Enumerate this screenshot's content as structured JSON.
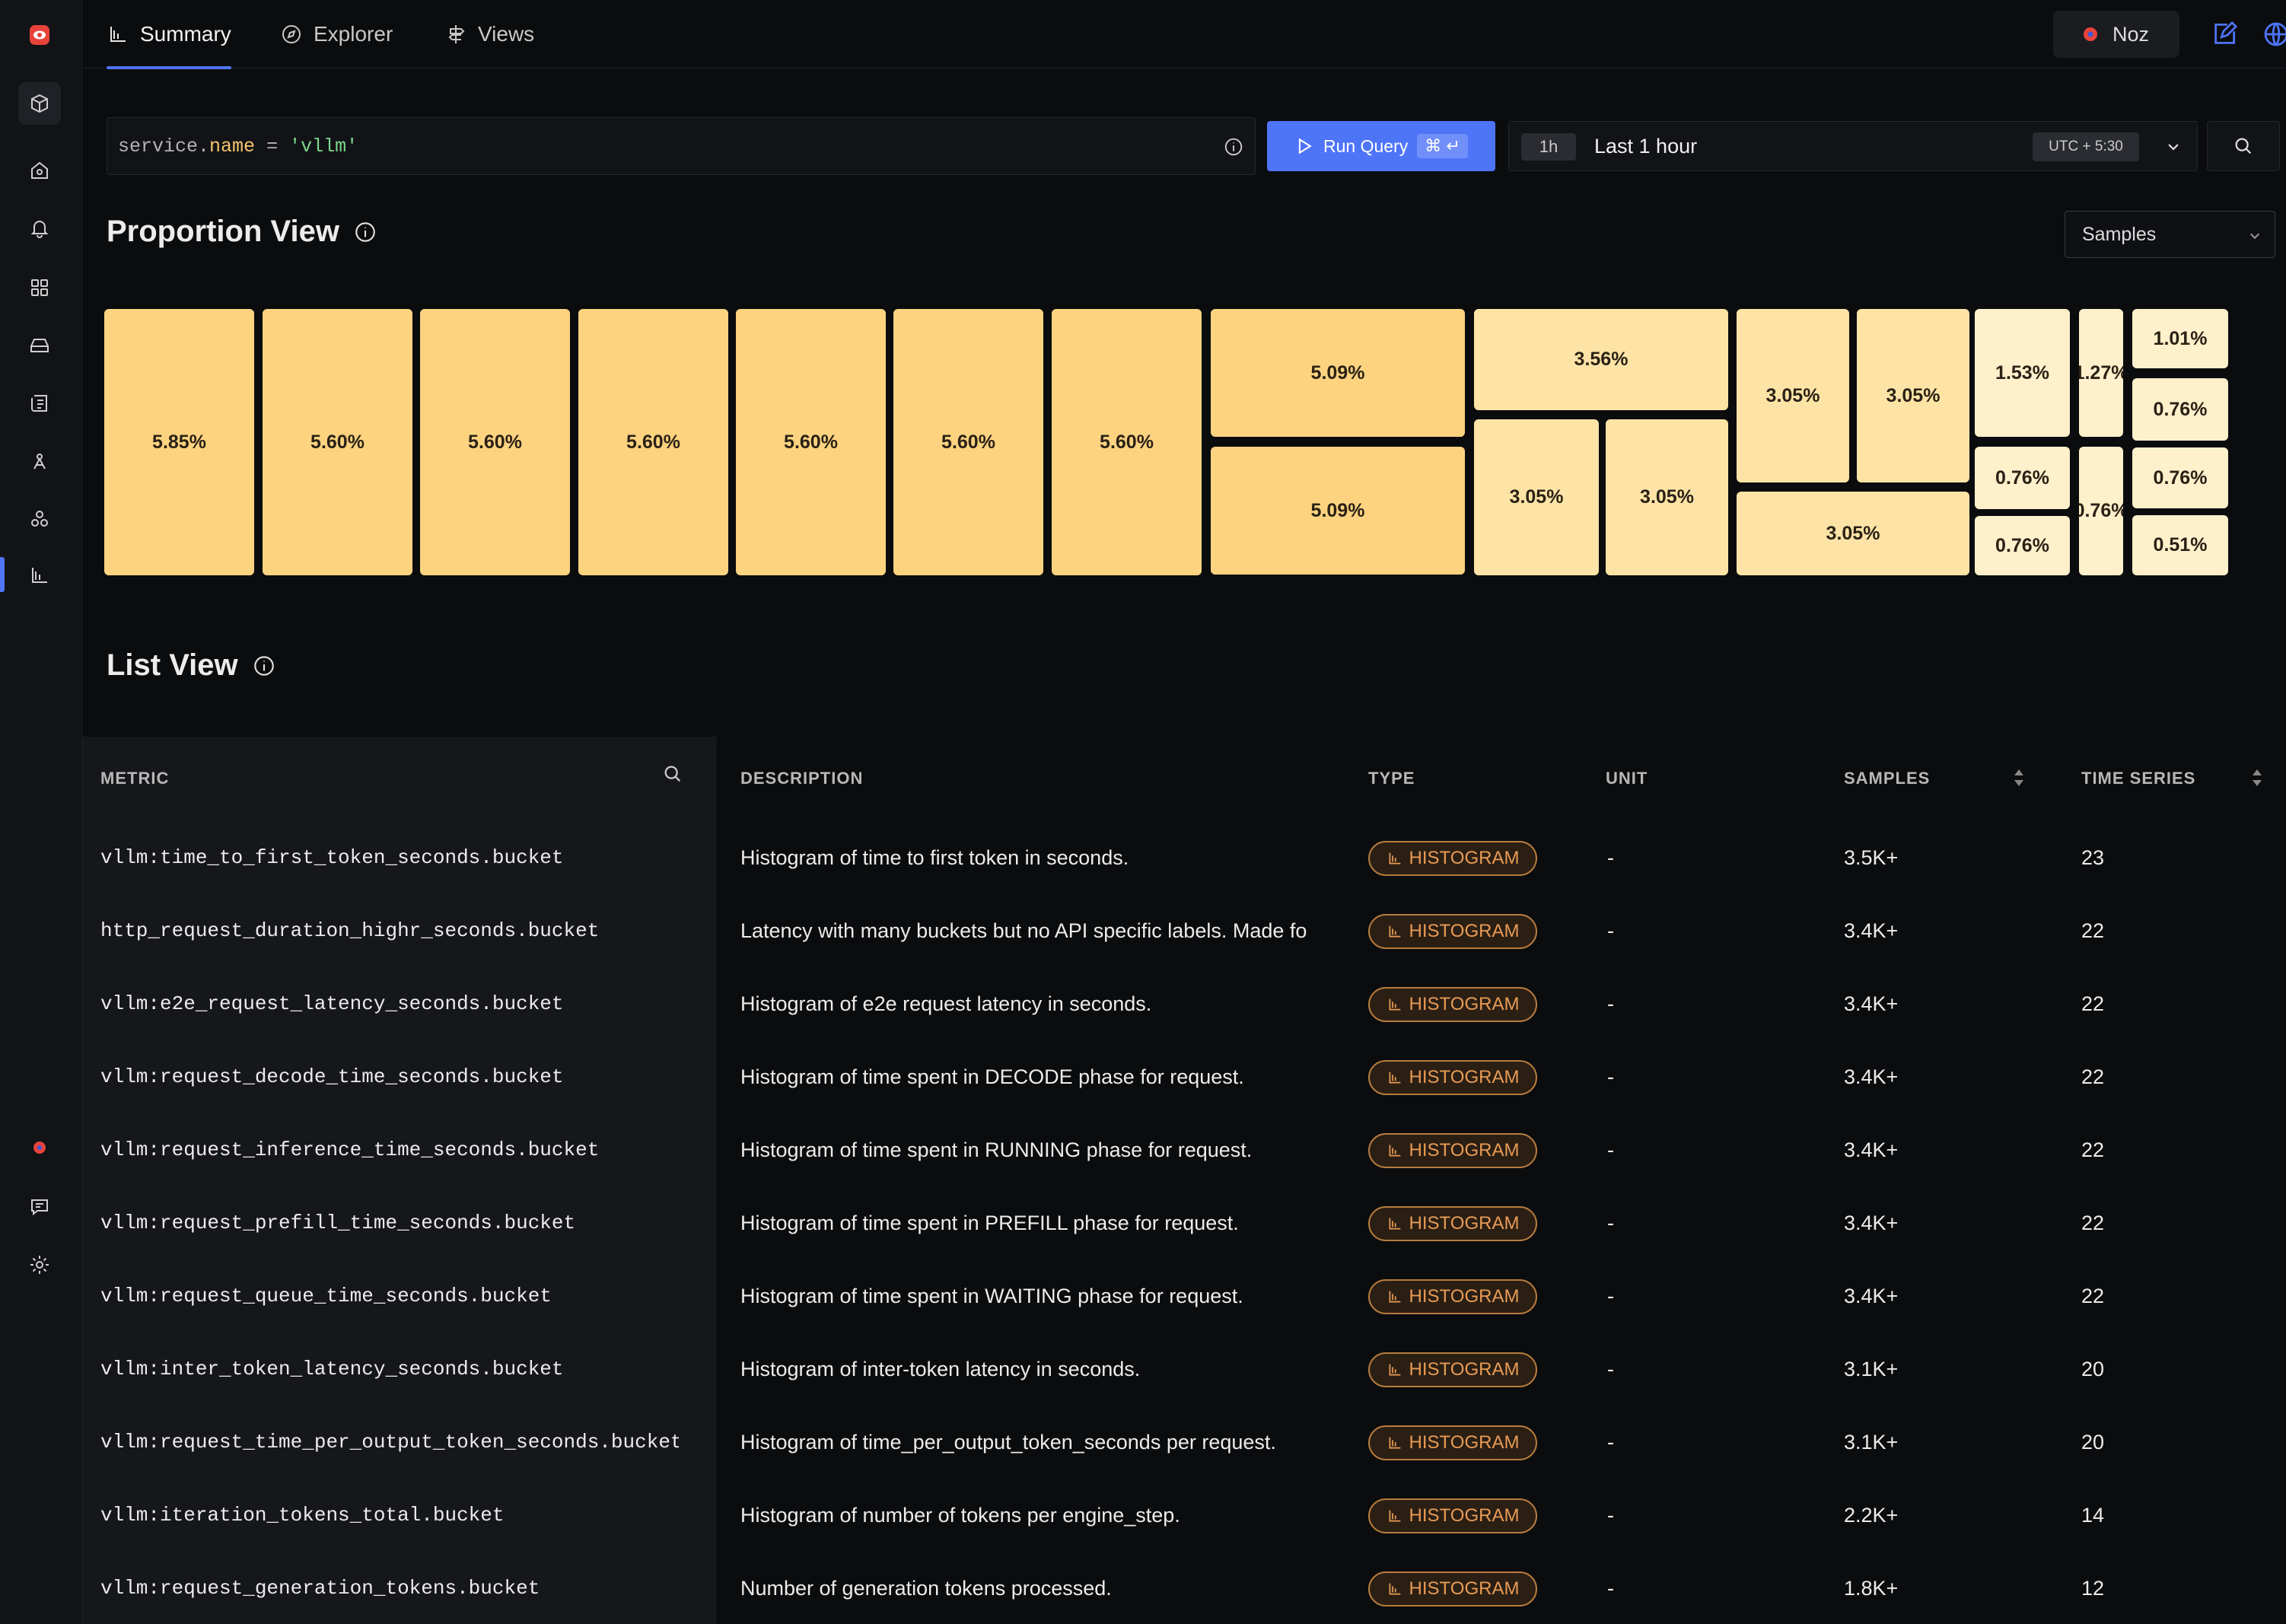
{
  "nav": {
    "tabs": [
      {
        "label": "Summary",
        "icon": "bar-chart-icon",
        "active": true
      },
      {
        "label": "Explorer",
        "icon": "compass-icon",
        "active": false
      },
      {
        "label": "Views",
        "icon": "signpost-icon",
        "active": false
      }
    ],
    "user_name": "Noz"
  },
  "query": {
    "key": "service",
    "dot": ".",
    "attr": "name",
    "op": " = ",
    "value": "'vllm'"
  },
  "run_button": {
    "label": "Run Query",
    "shortcut": "⌘ ↵"
  },
  "time_range": {
    "chip": "1h",
    "label": "Last 1 hour",
    "timezone": "UTC + 5:30"
  },
  "proportion_view": {
    "title": "Proportion View",
    "select_value": "Samples",
    "tiles": [
      "5.85%",
      "5.60%",
      "5.60%",
      "5.60%",
      "5.60%",
      "5.60%",
      "5.60%",
      "5.09%",
      "5.09%",
      "3.56%",
      "3.05%",
      "3.05%",
      "3.05%",
      "3.05%",
      "3.05%",
      "1.53%",
      "0.76%",
      "0.76%",
      "1.27%",
      "0.76%",
      "1.01%",
      "0.76%",
      "0.76%",
      "0.51%"
    ]
  },
  "list_view": {
    "title": "List View",
    "columns": [
      "METRIC",
      "DESCRIPTION",
      "TYPE",
      "UNIT",
      "SAMPLES",
      "TIME SERIES"
    ],
    "rows": [
      {
        "metric": "vllm:time_to_first_token_seconds.bucket",
        "description": "Histogram of time to first token in seconds.",
        "type": "HISTOGRAM",
        "unit": "-",
        "samples": "3.5K+",
        "series": "23"
      },
      {
        "metric": "http_request_duration_highr_seconds.bucket",
        "description": "Latency with many buckets but no API specific labels. Made fo",
        "type": "HISTOGRAM",
        "unit": "-",
        "samples": "3.4K+",
        "series": "22"
      },
      {
        "metric": "vllm:e2e_request_latency_seconds.bucket",
        "description": "Histogram of e2e request latency in seconds.",
        "type": "HISTOGRAM",
        "unit": "-",
        "samples": "3.4K+",
        "series": "22"
      },
      {
        "metric": "vllm:request_decode_time_seconds.bucket",
        "description": "Histogram of time spent in DECODE phase for request.",
        "type": "HISTOGRAM",
        "unit": "-",
        "samples": "3.4K+",
        "series": "22"
      },
      {
        "metric": "vllm:request_inference_time_seconds.bucket",
        "description": "Histogram of time spent in RUNNING phase for request.",
        "type": "HISTOGRAM",
        "unit": "-",
        "samples": "3.4K+",
        "series": "22"
      },
      {
        "metric": "vllm:request_prefill_time_seconds.bucket",
        "description": "Histogram of time spent in PREFILL phase for request.",
        "type": "HISTOGRAM",
        "unit": "-",
        "samples": "3.4K+",
        "series": "22"
      },
      {
        "metric": "vllm:request_queue_time_seconds.bucket",
        "description": "Histogram of time spent in WAITING phase for request.",
        "type": "HISTOGRAM",
        "unit": "-",
        "samples": "3.4K+",
        "series": "22"
      },
      {
        "metric": "vllm:inter_token_latency_seconds.bucket",
        "description": "Histogram of inter-token latency in seconds.",
        "type": "HISTOGRAM",
        "unit": "-",
        "samples": "3.1K+",
        "series": "20"
      },
      {
        "metric": "vllm:request_time_per_output_token_seconds.bucket",
        "description": "Histogram of time_per_output_token_seconds per request.",
        "type": "HISTOGRAM",
        "unit": "-",
        "samples": "3.1K+",
        "series": "20"
      },
      {
        "metric": "vllm:iteration_tokens_total.bucket",
        "description": "Histogram of number of tokens per engine_step.",
        "type": "HISTOGRAM",
        "unit": "-",
        "samples": "2.2K+",
        "series": "14"
      },
      {
        "metric": "vllm:request_generation_tokens.bucket",
        "description": "Number of generation tokens processed.",
        "type": "HISTOGRAM",
        "unit": "-",
        "samples": "1.8K+",
        "series": "12"
      }
    ]
  },
  "colors": {
    "accent": "#4e74f8",
    "tile_strong": "#fdd380",
    "tile_medium": "#fde4a6",
    "tile_light": "#fff0cc",
    "badge_text": "#e89b55"
  }
}
